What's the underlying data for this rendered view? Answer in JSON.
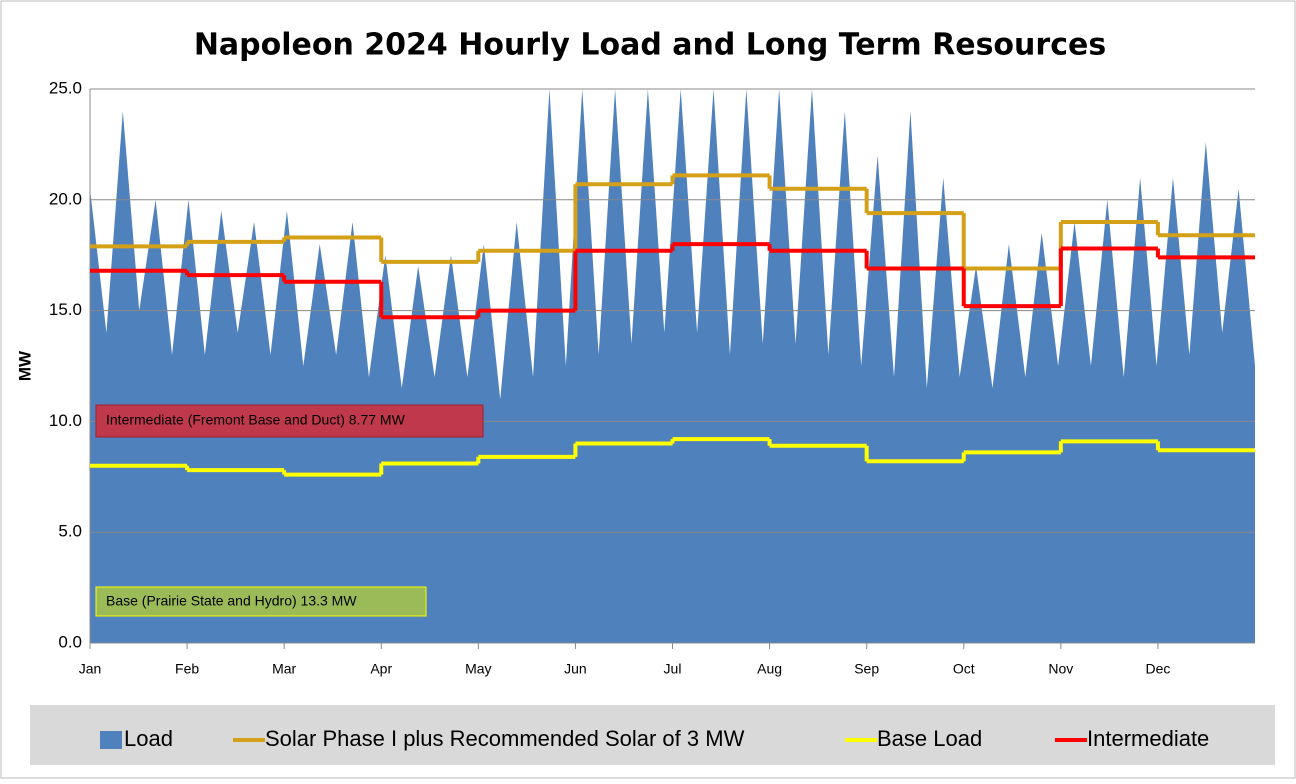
{
  "chart_data": {
    "type": "area-step",
    "title": "Napoleon 2024 Hourly Load and Long Term Resources",
    "y_label": "MW",
    "categories": [
      "Jan",
      "Feb",
      "Mar",
      "Apr",
      "May",
      "Jun",
      "Jul",
      "Aug",
      "Sep",
      "Oct",
      "Nov",
      "Dec"
    ],
    "ylim": [
      0,
      25
    ],
    "yticks": [
      {
        "value": 0,
        "label": "0.0"
      },
      {
        "value": 5,
        "label": "5.0"
      },
      {
        "value": 10,
        "label": "10.0"
      },
      {
        "value": 15,
        "label": "15.0"
      },
      {
        "value": 20,
        "label": "20.0"
      },
      {
        "value": 25,
        "label": "25.0"
      }
    ],
    "grid": true,
    "legend": "bottom",
    "load": {
      "name": "Load",
      "color": "#4f81bd",
      "values": [
        20.5,
        14,
        24,
        15,
        20,
        13,
        20,
        13,
        19.5,
        14,
        19,
        13,
        19.5,
        12.5,
        18,
        13,
        19,
        12,
        17.5,
        11.5,
        17,
        12,
        17.5,
        12,
        18,
        11,
        19,
        12,
        25,
        12.5,
        25,
        13,
        25,
        13.5,
        25,
        14,
        25,
        14,
        25,
        13,
        25,
        13.5,
        25,
        13.5,
        25,
        13,
        24,
        12.5,
        22,
        12,
        24,
        11.5,
        21,
        12,
        17,
        11.5,
        18,
        12,
        18.5,
        12.5,
        19,
        12.5,
        20,
        12,
        21,
        12.5,
        21,
        13,
        22.6,
        14,
        20.5,
        12.5
      ]
    },
    "series": [
      {
        "name": "Solar Phase I plus Recommended Solar of 3 MW",
        "color": "#d4a017",
        "values": [
          17.9,
          18.1,
          18.3,
          17.2,
          17.7,
          20.7,
          21.1,
          20.5,
          19.4,
          16.9,
          19.0,
          18.4
        ]
      },
      {
        "name": "Base Load",
        "color": "#ffff00",
        "values": [
          8.0,
          7.8,
          7.6,
          8.1,
          8.4,
          9.0,
          9.2,
          8.9,
          8.2,
          8.6,
          9.1,
          8.7
        ]
      },
      {
        "name": "Intermediate",
        "color": "#ff0000",
        "values": [
          16.8,
          16.6,
          16.3,
          14.7,
          15.0,
          17.7,
          18.0,
          17.7,
          16.9,
          15.2,
          17.8,
          17.4
        ]
      }
    ],
    "annotations": [
      "Intermediate  (Fremont Base and Duct) 8.77 MW",
      "Base (Prairie State and Hydro) 13.3 MW"
    ]
  }
}
